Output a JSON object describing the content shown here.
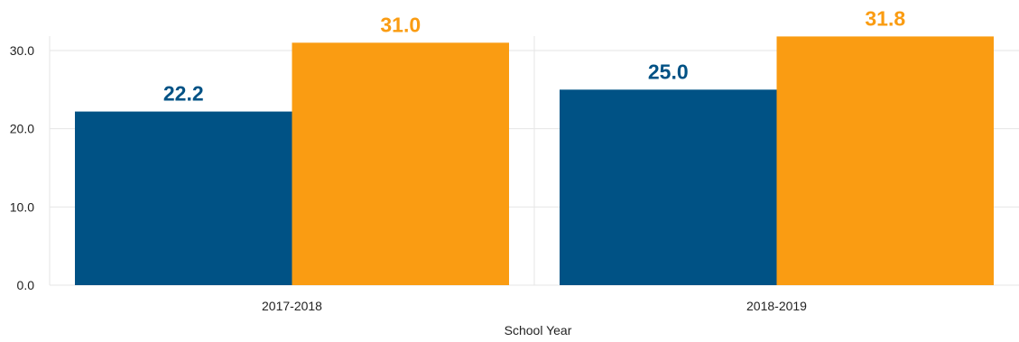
{
  "chart_data": {
    "type": "bar",
    "categories": [
      "2017-2018",
      "2018-2019"
    ],
    "series": [
      {
        "color": "#005285",
        "values": [
          22.2,
          25.0
        ],
        "labels": [
          "22.2",
          "25.0"
        ]
      },
      {
        "color": "#FA9C12",
        "values": [
          31.0,
          31.8
        ],
        "labels": [
          "31.0",
          "31.8"
        ]
      }
    ],
    "xlabel": "School Year",
    "ylabel": "",
    "ylim": [
      0,
      32
    ],
    "yticks": [
      "0.0",
      "10.0",
      "20.0",
      "30.0"
    ],
    "ytick_values": [
      0,
      10,
      20,
      30
    ],
    "grid": true,
    "legend": "none"
  }
}
